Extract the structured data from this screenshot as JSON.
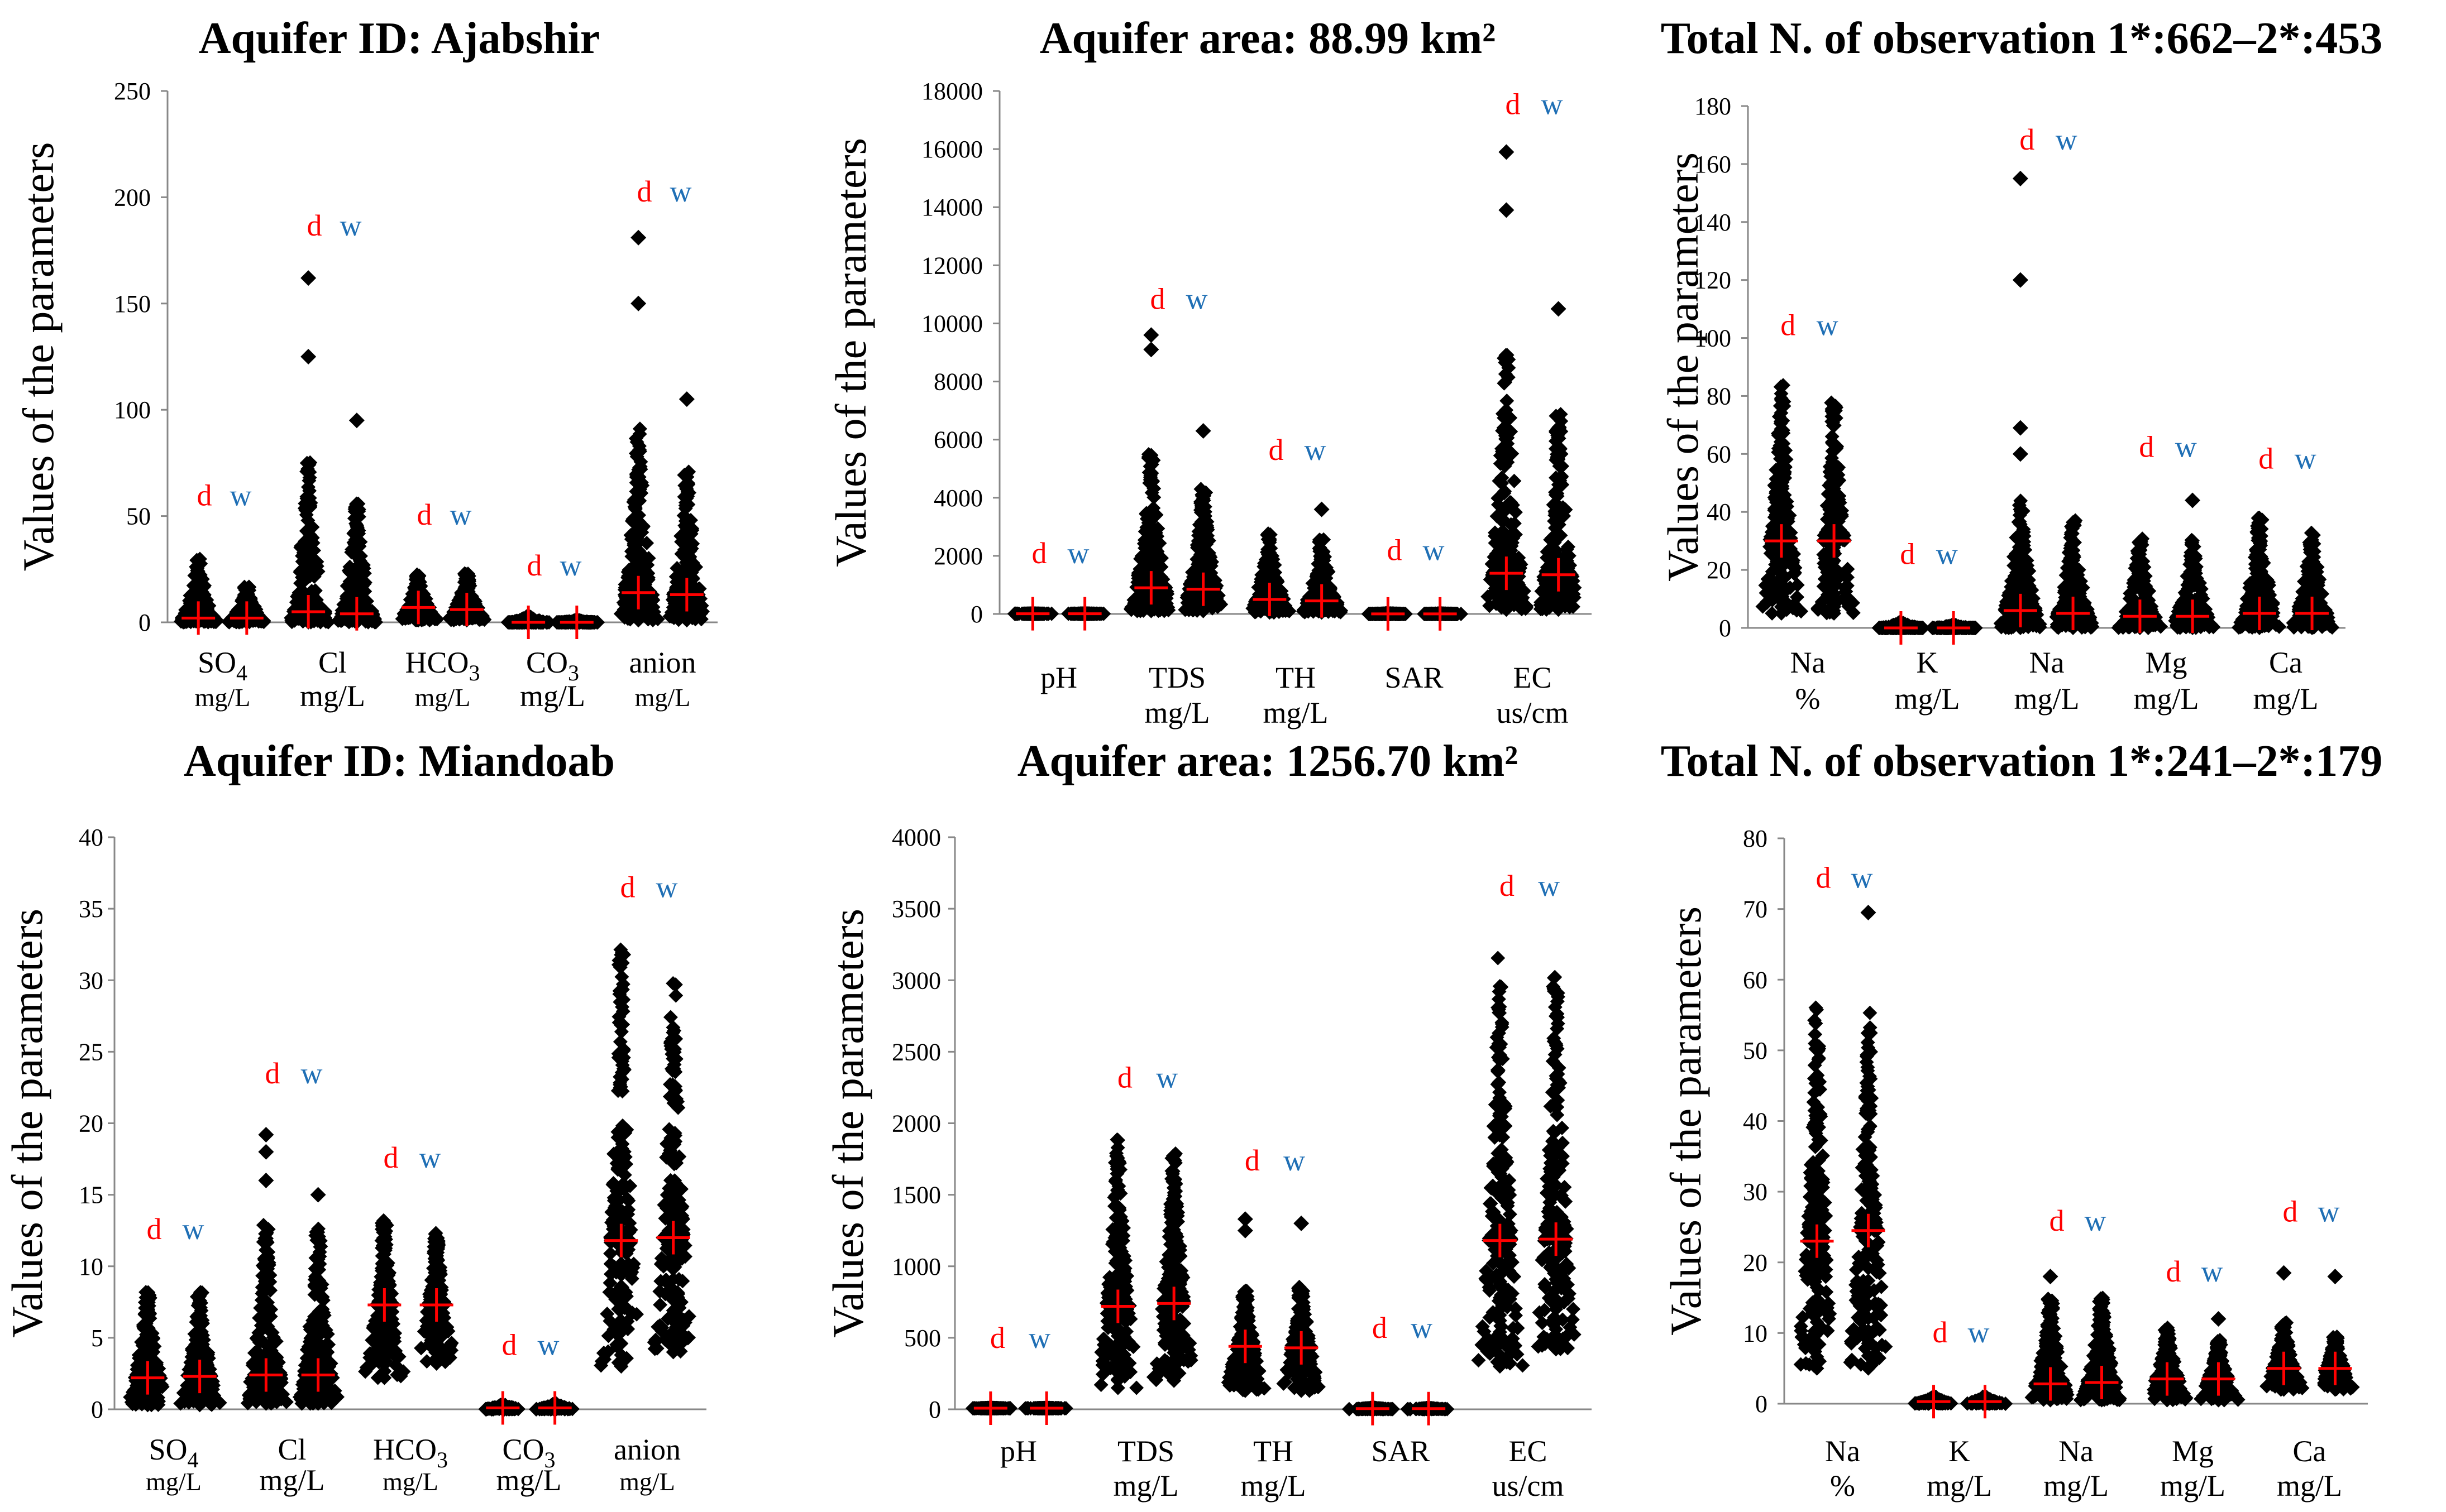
{
  "colors": {
    "points": "#000000",
    "mean_marker": "#ff0000",
    "d_label": "#ff0000",
    "w_label": "#1f6fb5",
    "axis": "#888888"
  },
  "chart_data": [
    {
      "type": "scatter",
      "title": "Aquifer ID: Ajabshir",
      "ylabel": "Values of the parameters",
      "ylim": [
        0,
        250
      ],
      "yticks": [
        0,
        50,
        100,
        150,
        200,
        250
      ],
      "series_names": [
        "d",
        "w"
      ],
      "groups": [
        {
          "name": "SO",
          "sub": "4",
          "unit": "mg/L",
          "unit_small": true,
          "d": {
            "mean": 2,
            "min": 0,
            "max": 31,
            "outliers": []
          },
          "w": {
            "mean": 2,
            "min": 0,
            "max": 17,
            "outliers": []
          },
          "label_y": 55
        },
        {
          "name": "Cl",
          "sub": "",
          "unit": "mg/L",
          "unit_small": false,
          "d": {
            "mean": 5,
            "min": 0,
            "max": 76,
            "outliers": [
              125,
              162
            ]
          },
          "w": {
            "mean": 4,
            "min": 0,
            "max": 56,
            "outliers": [
              95
            ]
          },
          "label_y": 182
        },
        {
          "name": "HCO",
          "sub": "3",
          "unit": "mg/L",
          "unit_small": true,
          "d": {
            "mean": 7,
            "min": 1,
            "max": 23,
            "outliers": []
          },
          "w": {
            "mean": 6,
            "min": 1,
            "max": 23,
            "outliers": []
          },
          "label_y": 46
        },
        {
          "name": "CO",
          "sub": "3",
          "unit": "mg/L",
          "unit_small": false,
          "d": {
            "mean": 0,
            "min": 0,
            "max": 3,
            "outliers": []
          },
          "w": {
            "mean": 0,
            "min": 0,
            "max": 1,
            "outliers": []
          },
          "label_y": 22
        },
        {
          "name": "anion",
          "sub": "",
          "unit": "mg/L",
          "unit_small": true,
          "d": {
            "mean": 14,
            "min": 1,
            "max": 92,
            "outliers": [
              150,
              181
            ]
          },
          "w": {
            "mean": 13,
            "min": 1,
            "max": 72,
            "outliers": [
              105
            ]
          },
          "label_y": 198
        }
      ]
    },
    {
      "type": "scatter",
      "title": "Aquifer area: 88.99 km²",
      "ylabel": "Values of the parameters",
      "ylim": [
        0,
        18000
      ],
      "yticks": [
        0,
        2000,
        4000,
        6000,
        8000,
        10000,
        12000,
        14000,
        16000,
        18000
      ],
      "series_names": [
        "d",
        "w"
      ],
      "groups": [
        {
          "name": "pH",
          "sub": "",
          "unit": "",
          "unit_small": false,
          "d": {
            "mean": 8,
            "min": 7,
            "max": 9,
            "outliers": []
          },
          "w": {
            "mean": 8,
            "min": 7,
            "max": 9,
            "outliers": []
          },
          "label_y": 1750
        },
        {
          "name": "TDS",
          "sub": "",
          "unit": "mg/L",
          "unit_small": false,
          "d": {
            "mean": 900,
            "min": 100,
            "max": 5500,
            "outliers": [
              9100,
              9600
            ]
          },
          "w": {
            "mean": 850,
            "min": 100,
            "max": 4300,
            "outliers": [
              6300
            ]
          },
          "label_y": 10500
        },
        {
          "name": "TH",
          "sub": "",
          "unit": "mg/L",
          "unit_small": false,
          "d": {
            "mean": 500,
            "min": 50,
            "max": 2800,
            "outliers": []
          },
          "w": {
            "mean": 450,
            "min": 50,
            "max": 2600,
            "outliers": [
              3600
            ]
          },
          "label_y": 5300
        },
        {
          "name": "SAR",
          "sub": "",
          "unit": "",
          "unit_small": false,
          "d": {
            "mean": 2,
            "min": 0,
            "max": 20,
            "outliers": []
          },
          "w": {
            "mean": 2,
            "min": 0,
            "max": 15,
            "outliers": []
          },
          "label_y": 1850
        },
        {
          "name": "EC",
          "sub": "",
          "unit": "us/cm",
          "unit_small": false,
          "d": {
            "mean": 1400,
            "min": 150,
            "max": 9200,
            "outliers": [
              13900,
              15900
            ]
          },
          "w": {
            "mean": 1350,
            "min": 150,
            "max": 7000,
            "outliers": [
              10500
            ]
          },
          "label_y": 17200
        }
      ]
    },
    {
      "type": "scatter",
      "title": "Total N. of observation 1*:662–2*:453",
      "ylabel": "Values of the parameters",
      "ylim": [
        0,
        180
      ],
      "yticks": [
        0,
        20,
        40,
        60,
        80,
        100,
        120,
        140,
        160,
        180
      ],
      "series_names": [
        "d",
        "w"
      ],
      "groups": [
        {
          "name": "Na",
          "sub": "",
          "unit": "%",
          "unit_small": false,
          "d": {
            "mean": 30,
            "min": 5,
            "max": 87,
            "outliers": []
          },
          "w": {
            "mean": 30,
            "min": 5,
            "max": 78,
            "outliers": []
          },
          "label_y": 101
        },
        {
          "name": "K",
          "sub": "",
          "unit": "mg/L",
          "unit_small": false,
          "d": {
            "mean": 0,
            "min": 0,
            "max": 2,
            "outliers": []
          },
          "w": {
            "mean": 0,
            "min": 0,
            "max": 1,
            "outliers": []
          },
          "label_y": 22
        },
        {
          "name": "Na",
          "sub": "",
          "unit": "mg/L",
          "unit_small": false,
          "d": {
            "mean": 6,
            "min": 0,
            "max": 45,
            "outliers": [
              60,
              69,
              120,
              155
            ]
          },
          "w": {
            "mean": 5,
            "min": 0,
            "max": 38,
            "outliers": []
          },
          "label_y": 165
        },
        {
          "name": "Mg",
          "sub": "",
          "unit": "mg/L",
          "unit_small": false,
          "d": {
            "mean": 4,
            "min": 0,
            "max": 31,
            "outliers": []
          },
          "w": {
            "mean": 4,
            "min": 0,
            "max": 31,
            "outliers": [
              44
            ]
          },
          "label_y": 59
        },
        {
          "name": "Ca",
          "sub": "",
          "unit": "mg/L",
          "unit_small": false,
          "d": {
            "mean": 5,
            "min": 0,
            "max": 38,
            "outliers": []
          },
          "w": {
            "mean": 5,
            "min": 0,
            "max": 33,
            "outliers": []
          },
          "label_y": 55
        }
      ]
    },
    {
      "type": "scatter",
      "title": "Aquifer ID: Miandoab",
      "ylabel": "Values of the parameters",
      "ylim": [
        0,
        40
      ],
      "yticks": [
        0,
        5,
        10,
        15,
        20,
        25,
        30,
        35,
        40
      ],
      "series_names": [
        "d",
        "w"
      ],
      "groups": [
        {
          "name": "SO",
          "sub": "4",
          "unit": "mg/L",
          "unit_small": true,
          "d": {
            "mean": 2.2,
            "min": 0.3,
            "max": 8.4,
            "outliers": []
          },
          "w": {
            "mean": 2.3,
            "min": 0.3,
            "max": 8.2,
            "outliers": []
          },
          "label_y": 11.9
        },
        {
          "name": "Cl",
          "sub": "",
          "unit": "mg/L",
          "unit_small": false,
          "d": {
            "mean": 2.4,
            "min": 0.4,
            "max": 13,
            "outliers": [
              16,
              18,
              19.2
            ]
          },
          "w": {
            "mean": 2.4,
            "min": 0.4,
            "max": 13,
            "outliers": [
              15
            ]
          },
          "label_y": 22.8
        },
        {
          "name": "HCO",
          "sub": "3",
          "unit": "mg/L",
          "unit_small": true,
          "d": {
            "mean": 7.3,
            "min": 2.2,
            "max": 13.4,
            "outliers": []
          },
          "w": {
            "mean": 7.3,
            "min": 3.2,
            "max": 12.4,
            "outliers": []
          },
          "label_y": 16.9
        },
        {
          "name": "CO",
          "sub": "3",
          "unit": "mg/L",
          "unit_small": false,
          "d": {
            "mean": 0.1,
            "min": 0,
            "max": 0.3,
            "outliers": []
          },
          "w": {
            "mean": 0.1,
            "min": 0,
            "max": 0.4,
            "outliers": []
          },
          "label_y": 3.8
        },
        {
          "name": "anion",
          "sub": "",
          "unit": "mg/L",
          "unit_small": true,
          "d": {
            "mean": 11.8,
            "min": 3,
            "max": 32.3,
            "outliers": []
          },
          "w": {
            "mean": 12,
            "min": 4,
            "max": 30,
            "outliers": []
          },
          "label_y": 35.8
        }
      ]
    },
    {
      "type": "scatter",
      "title": "Aquifer area: 1256.70 km²",
      "ylabel": "Values of the parameters",
      "ylim": [
        0,
        4000
      ],
      "yticks": [
        0,
        500,
        1000,
        1500,
        2000,
        2500,
        3000,
        3500,
        4000
      ],
      "series_names": [
        "d",
        "w"
      ],
      "groups": [
        {
          "name": "pH",
          "sub": "",
          "unit": "",
          "unit_small": false,
          "d": {
            "mean": 8,
            "min": 7,
            "max": 9,
            "outliers": []
          },
          "w": {
            "mean": 8,
            "min": 7,
            "max": 9,
            "outliers": []
          },
          "label_y": 430
        },
        {
          "name": "TDS",
          "sub": "",
          "unit": "mg/L",
          "unit_small": false,
          "d": {
            "mean": 720,
            "min": 150,
            "max": 1900,
            "outliers": []
          },
          "w": {
            "mean": 740,
            "min": 200,
            "max": 1800,
            "outliers": []
          },
          "label_y": 2250
        },
        {
          "name": "TH",
          "sub": "",
          "unit": "mg/L",
          "unit_small": false,
          "d": {
            "mean": 440,
            "min": 130,
            "max": 830,
            "outliers": [
              1250,
              1330
            ]
          },
          "w": {
            "mean": 430,
            "min": 130,
            "max": 870,
            "outliers": [
              1300
            ]
          },
          "label_y": 1670
        },
        {
          "name": "SAR",
          "sub": "",
          "unit": "",
          "unit_small": false,
          "d": {
            "mean": 5,
            "min": 1,
            "max": 10,
            "outliers": []
          },
          "w": {
            "mean": 5,
            "min": 1,
            "max": 8,
            "outliers": []
          },
          "label_y": 500
        },
        {
          "name": "EC",
          "sub": "",
          "unit": "us/cm",
          "unit_small": false,
          "d": {
            "mean": 1180,
            "min": 300,
            "max": 3230,
            "outliers": []
          },
          "w": {
            "mean": 1190,
            "min": 420,
            "max": 3030,
            "outliers": []
          },
          "label_y": 3590
        }
      ]
    },
    {
      "type": "scatter",
      "title": "Total N. of observation 1*:241–2*:179",
      "ylabel": "Values of the parameters",
      "ylim": [
        0,
        80
      ],
      "yticks": [
        0,
        10,
        20,
        30,
        40,
        50,
        60,
        70,
        80
      ],
      "series_names": [
        "d",
        "w"
      ],
      "groups": [
        {
          "name": "Na",
          "sub": "",
          "unit": "%",
          "unit_small": false,
          "d": {
            "mean": 23,
            "min": 5,
            "max": 57,
            "outliers": []
          },
          "w": {
            "mean": 24.5,
            "min": 5,
            "max": 56.5,
            "outliers": [
              69.5
            ]
          },
          "label_y": 73
        },
        {
          "name": "K",
          "sub": "",
          "unit": "mg/L",
          "unit_small": false,
          "d": {
            "mean": 0.3,
            "min": 0,
            "max": 1,
            "outliers": []
          },
          "w": {
            "mean": 0.3,
            "min": 0,
            "max": 1,
            "outliers": []
          },
          "label_y": 8.7
        },
        {
          "name": "Na",
          "sub": "",
          "unit": "mg/L",
          "unit_small": false,
          "d": {
            "mean": 2.8,
            "min": 0.5,
            "max": 15,
            "outliers": [
              18
            ]
          },
          "w": {
            "mean": 3,
            "min": 0.5,
            "max": 15.5,
            "outliers": []
          },
          "label_y": 24.5
        },
        {
          "name": "Mg",
          "sub": "",
          "unit": "mg/L",
          "unit_small": false,
          "d": {
            "mean": 3.5,
            "min": 0.5,
            "max": 11,
            "outliers": []
          },
          "w": {
            "mean": 3.5,
            "min": 0.5,
            "max": 9,
            "outliers": [
              12
            ]
          },
          "label_y": 17.3
        },
        {
          "name": "Ca",
          "sub": "",
          "unit": "mg/L",
          "unit_small": false,
          "d": {
            "mean": 5,
            "min": 2,
            "max": 11.5,
            "outliers": [
              18.5
            ]
          },
          "w": {
            "mean": 5,
            "min": 2,
            "max": 9.5,
            "outliers": [
              18
            ]
          },
          "label_y": 25.8
        }
      ]
    }
  ]
}
